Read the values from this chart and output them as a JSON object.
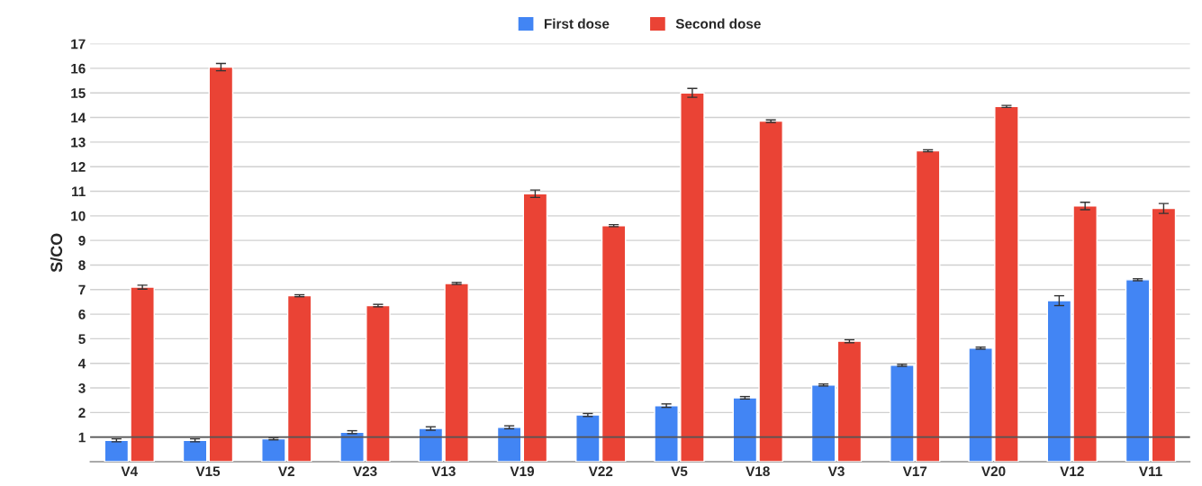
{
  "chart_data": {
    "type": "bar",
    "ylabel": "S/CO",
    "categories": [
      "V4",
      "V15",
      "V2",
      "V23",
      "V13",
      "V19",
      "V22",
      "V5",
      "V18",
      "V3",
      "V17",
      "V20",
      "V12",
      "V11"
    ],
    "series": [
      {
        "name": "First dose",
        "color": "#4285f4",
        "values": [
          0.87,
          0.87,
          0.93,
          1.2,
          1.35,
          1.4,
          1.9,
          2.28,
          2.6,
          3.12,
          3.92,
          4.62,
          6.55,
          7.4
        ],
        "errors": [
          0.06,
          0.06,
          0.04,
          0.06,
          0.07,
          0.06,
          0.06,
          0.07,
          0.05,
          0.04,
          0.04,
          0.04,
          0.2,
          0.04
        ]
      },
      {
        "name": "Second dose",
        "color": "#ea4335",
        "values": [
          7.1,
          16.05,
          6.75,
          6.35,
          7.25,
          10.9,
          9.6,
          15.0,
          13.85,
          4.9,
          12.65,
          14.45,
          10.4,
          10.3
        ],
        "errors": [
          0.08,
          0.15,
          0.04,
          0.05,
          0.04,
          0.15,
          0.04,
          0.18,
          0.05,
          0.06,
          0.04,
          0.04,
          0.15,
          0.2
        ]
      }
    ],
    "ylim": [
      0,
      17
    ],
    "yticks": [
      1,
      2,
      3,
      4,
      5,
      6,
      7,
      8,
      9,
      10,
      11,
      12,
      13,
      14,
      15,
      16,
      17
    ],
    "ref_lines": [
      {
        "axis": "y",
        "value": 1,
        "label": null,
        "color": "#555555"
      }
    ],
    "grid": "y",
    "legend": "top"
  }
}
